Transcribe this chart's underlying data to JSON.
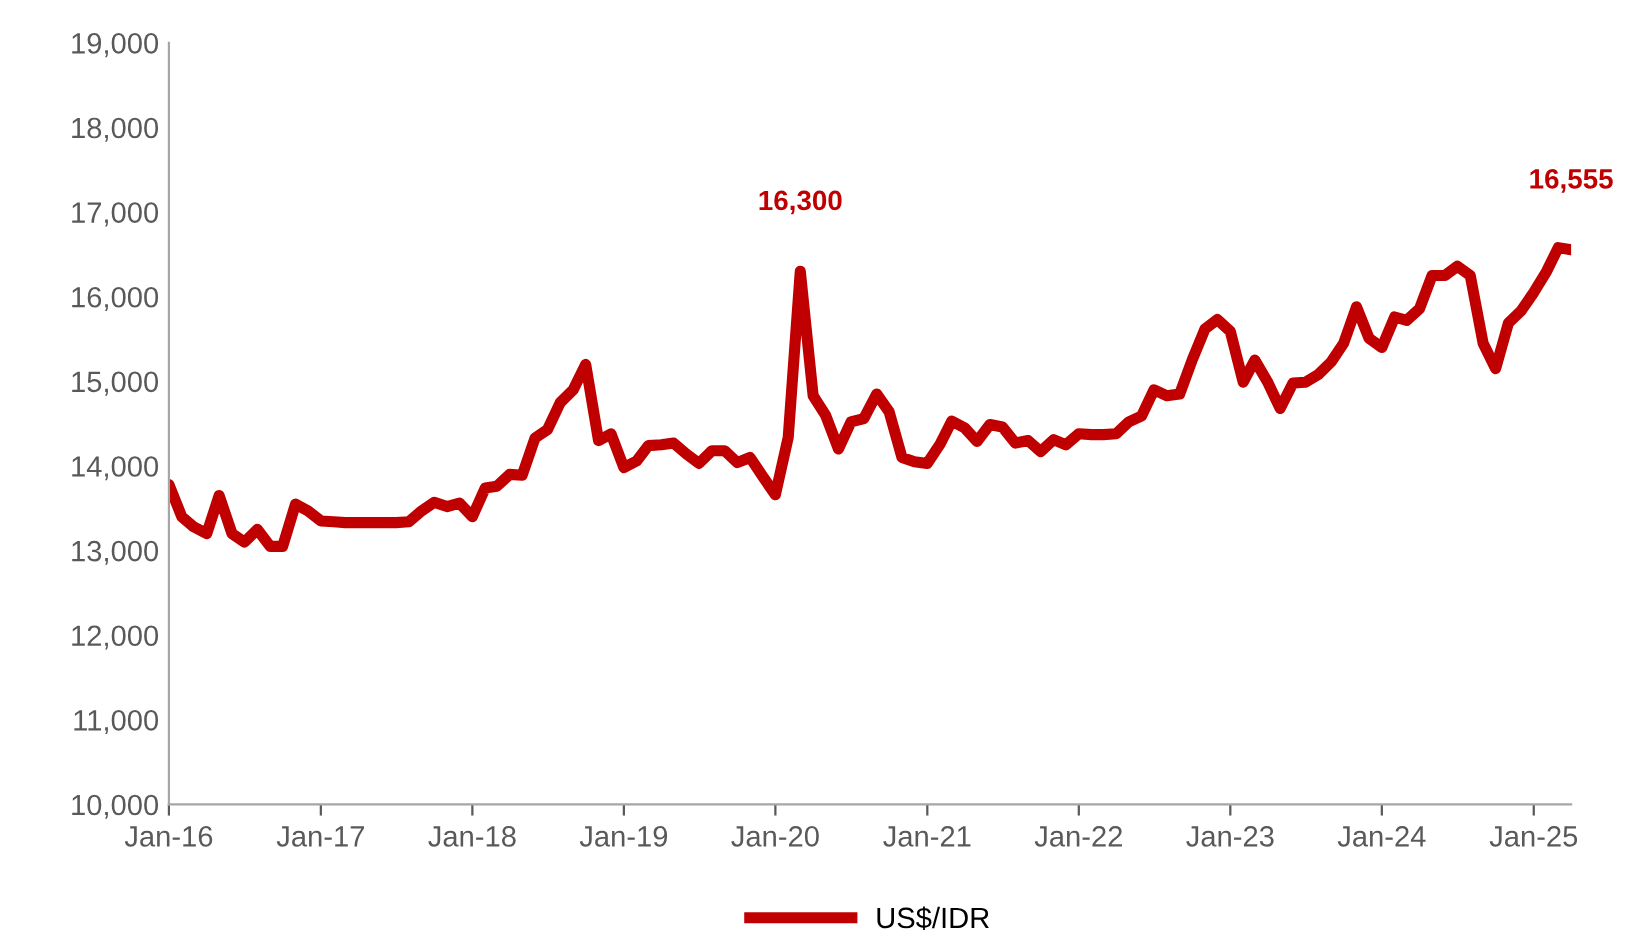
{
  "chart_data": {
    "type": "line",
    "x": [
      "2016-01",
      "2016-02",
      "2016-03",
      "2016-04",
      "2016-05",
      "2016-06",
      "2016-07",
      "2016-08",
      "2016-09",
      "2016-10",
      "2016-11",
      "2016-12",
      "2017-01",
      "2017-02",
      "2017-03",
      "2017-04",
      "2017-05",
      "2017-06",
      "2017-07",
      "2017-08",
      "2017-09",
      "2017-10",
      "2017-11",
      "2017-12",
      "2018-01",
      "2018-02",
      "2018-03",
      "2018-04",
      "2018-05",
      "2018-06",
      "2018-07",
      "2018-08",
      "2018-09",
      "2018-10",
      "2018-11",
      "2018-12",
      "2019-01",
      "2019-02",
      "2019-03",
      "2019-04",
      "2019-05",
      "2019-06",
      "2019-07",
      "2019-08",
      "2019-09",
      "2019-10",
      "2019-11",
      "2019-12",
      "2020-01",
      "2020-02",
      "2020-03",
      "2020-04",
      "2020-05",
      "2020-06",
      "2020-07",
      "2020-08",
      "2020-09",
      "2020-10",
      "2020-11",
      "2020-12",
      "2021-01",
      "2021-02",
      "2021-03",
      "2021-04",
      "2021-05",
      "2021-06",
      "2021-07",
      "2021-08",
      "2021-09",
      "2021-10",
      "2021-11",
      "2021-12",
      "2022-01",
      "2022-02",
      "2022-03",
      "2022-04",
      "2022-05",
      "2022-06",
      "2022-07",
      "2022-08",
      "2022-09",
      "2022-10",
      "2022-11",
      "2022-12",
      "2023-01",
      "2023-02",
      "2023-03",
      "2023-04",
      "2023-05",
      "2023-06",
      "2023-07",
      "2023-08",
      "2023-09",
      "2023-10",
      "2023-11",
      "2023-12",
      "2024-01",
      "2024-02",
      "2024-03",
      "2024-04",
      "2024-05",
      "2024-06",
      "2024-07",
      "2024-08",
      "2024-09",
      "2024-10",
      "2024-11",
      "2024-12",
      "2025-01",
      "2025-02",
      "2025-03",
      "2025-04"
    ],
    "series": [
      {
        "name": "US$/IDR",
        "color": "#c00000",
        "values": [
          13780,
          13400,
          13280,
          13200,
          13650,
          13200,
          13100,
          13250,
          13050,
          13050,
          13550,
          13470,
          13350,
          13340,
          13330,
          13330,
          13330,
          13330,
          13330,
          13340,
          13470,
          13570,
          13520,
          13560,
          13400,
          13740,
          13760,
          13900,
          13890,
          14330,
          14430,
          14750,
          14900,
          15200,
          14300,
          14380,
          13980,
          14060,
          14240,
          14250,
          14270,
          14140,
          14030,
          14180,
          14180,
          14040,
          14100,
          13880,
          13660,
          14340,
          16300,
          14830,
          14600,
          14200,
          14520,
          14560,
          14850,
          14640,
          14100,
          14050,
          14030,
          14260,
          14530,
          14450,
          14290,
          14490,
          14460,
          14270,
          14300,
          14170,
          14310,
          14250,
          14380,
          14370,
          14370,
          14380,
          14520,
          14590,
          14900,
          14830,
          14850,
          15250,
          15620,
          15730,
          15590,
          14990,
          15250,
          14990,
          14680,
          14980,
          14990,
          15080,
          15230,
          15450,
          15880,
          15510,
          15400,
          15760,
          15720,
          15860,
          16250,
          16250,
          16360,
          16250,
          15450,
          15150,
          15690,
          15830,
          16050,
          16300,
          16580,
          16555
        ]
      }
    ],
    "xlim": [
      "2016-01",
      "2025-04"
    ],
    "xticks": [
      {
        "value": "2016-01",
        "label": "Jan-16"
      },
      {
        "value": "2017-01",
        "label": "Jan-17"
      },
      {
        "value": "2018-01",
        "label": "Jan-18"
      },
      {
        "value": "2019-01",
        "label": "Jan-19"
      },
      {
        "value": "2020-01",
        "label": "Jan-20"
      },
      {
        "value": "2021-01",
        "label": "Jan-21"
      },
      {
        "value": "2022-01",
        "label": "Jan-22"
      },
      {
        "value": "2023-01",
        "label": "Jan-23"
      },
      {
        "value": "2024-01",
        "label": "Jan-24"
      },
      {
        "value": "2025-01",
        "label": "Jan-25"
      }
    ],
    "ylim": [
      10000,
      19000
    ],
    "yticks": [
      {
        "value": 10000,
        "label": "10,000"
      },
      {
        "value": 11000,
        "label": "11,000"
      },
      {
        "value": 12000,
        "label": "12,000"
      },
      {
        "value": 13000,
        "label": "13,000"
      },
      {
        "value": 14000,
        "label": "14,000"
      },
      {
        "value": 15000,
        "label": "15,000"
      },
      {
        "value": 16000,
        "label": "16,000"
      },
      {
        "value": 17000,
        "label": "17,000"
      },
      {
        "value": 18000,
        "label": "18,000"
      },
      {
        "value": 19000,
        "label": "19,000"
      }
    ],
    "annotations": [
      {
        "text": "16,300",
        "x": "2020-03",
        "y": 16300
      },
      {
        "text": "16,555",
        "x": "2025-04",
        "y": 16555
      }
    ],
    "legend": "bottom",
    "grid": false,
    "marker": "none",
    "line_style": "solid"
  }
}
